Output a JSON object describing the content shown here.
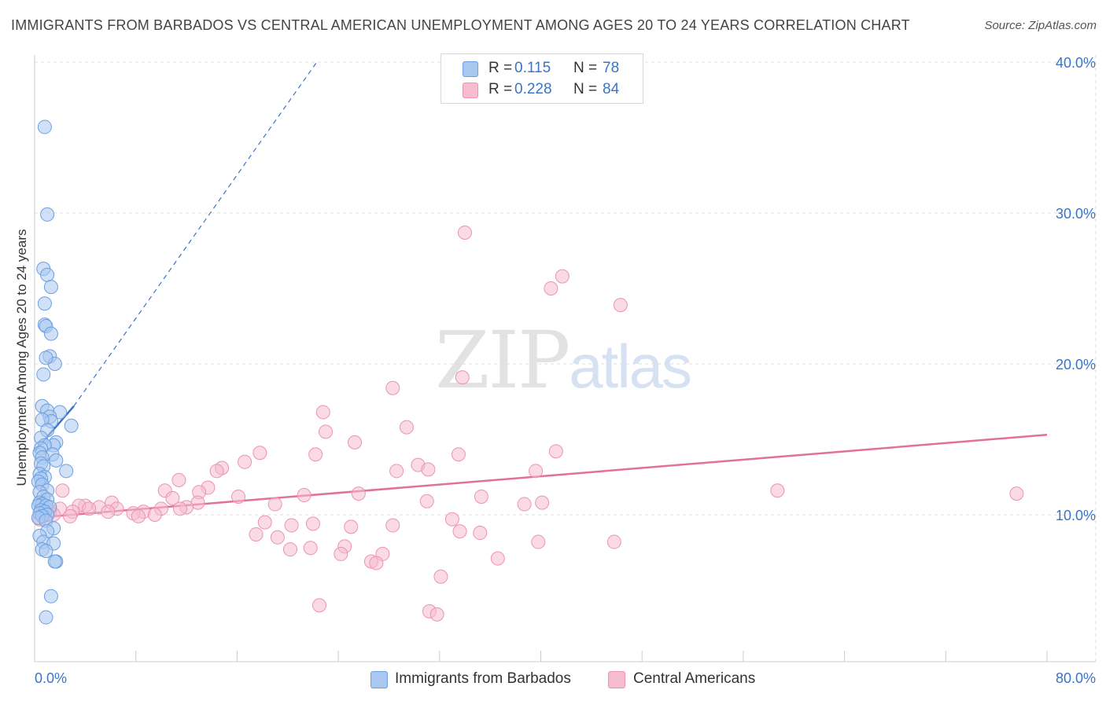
{
  "title": "IMMIGRANTS FROM BARBADOS VS CENTRAL AMERICAN UNEMPLOYMENT AMONG AGES 20 TO 24 YEARS CORRELATION CHART",
  "source": "Source: ZipAtlas.com",
  "watermark": {
    "zip": "ZIP",
    "atlas": "atlas"
  },
  "legend_top": [
    {
      "r_label": "R =",
      "r_value": "0.115",
      "n_label": "N =",
      "n_value": "78"
    },
    {
      "r_label": "R =",
      "r_value": "0.228",
      "n_label": "N =",
      "n_value": "84"
    }
  ],
  "legend_bottom": [
    "Immigrants from Barbados",
    "Central Americans"
  ],
  "colors": {
    "blue_fill": "#a9c8f0",
    "blue_stroke": "#6b9fe0",
    "blue_line": "#3a74c8",
    "pink_fill": "#f6bcd0",
    "pink_stroke": "#ec93b1",
    "pink_line": "#e3709a",
    "grid": "#dddddd",
    "tick_label": "#3a74c8"
  },
  "chart_data": {
    "type": "scatter",
    "title": "IMMIGRANTS FROM BARBADOS VS CENTRAL AMERICAN UNEMPLOYMENT AMONG AGES 20 TO 24 YEARS CORRELATION CHART",
    "xlabel": "",
    "ylabel": "Unemployment Among Ages 20 to 24 years",
    "xlim": [
      0,
      80
    ],
    "ylim": [
      0,
      42
    ],
    "x_tick_labels": [
      "0.0%",
      "80.0%"
    ],
    "y_ticks": [
      10,
      20,
      30,
      40
    ],
    "y_tick_labels": [
      "10.0%",
      "20.0%",
      "30.0%",
      "40.0%"
    ],
    "grid": true,
    "series": [
      {
        "name": "Immigrants from Barbados",
        "r": 0.115,
        "n": 78,
        "trend_solid": [
          [
            0.0,
            14.2
          ],
          [
            3.1,
            17.2
          ]
        ],
        "trend_dashed": [
          [
            3.1,
            17.2
          ],
          [
            22.3,
            40.0
          ]
        ],
        "points": [
          [
            0.8,
            35.7
          ],
          [
            1.0,
            29.9
          ],
          [
            0.7,
            26.3
          ],
          [
            1.0,
            25.9
          ],
          [
            1.3,
            25.1
          ],
          [
            0.8,
            24.0
          ],
          [
            0.8,
            22.6
          ],
          [
            0.9,
            22.5
          ],
          [
            1.3,
            22.0
          ],
          [
            1.2,
            20.5
          ],
          [
            1.6,
            20.0
          ],
          [
            0.9,
            20.4
          ],
          [
            0.7,
            19.3
          ],
          [
            0.6,
            17.2
          ],
          [
            1.0,
            16.9
          ],
          [
            2.0,
            16.8
          ],
          [
            1.2,
            16.5
          ],
          [
            1.3,
            16.2
          ],
          [
            0.6,
            16.3
          ],
          [
            2.9,
            15.9
          ],
          [
            1.0,
            15.6
          ],
          [
            0.5,
            15.1
          ],
          [
            1.7,
            14.8
          ],
          [
            1.5,
            14.6
          ],
          [
            0.8,
            14.6
          ],
          [
            0.5,
            14.4
          ],
          [
            0.4,
            14.1
          ],
          [
            1.4,
            14.0
          ],
          [
            0.6,
            13.8
          ],
          [
            1.7,
            13.6
          ],
          [
            0.5,
            13.4
          ],
          [
            0.7,
            13.2
          ],
          [
            2.5,
            12.9
          ],
          [
            0.4,
            12.7
          ],
          [
            0.8,
            12.5
          ],
          [
            0.5,
            12.4
          ],
          [
            0.3,
            12.2
          ],
          [
            0.6,
            12.0
          ],
          [
            1.0,
            11.6
          ],
          [
            0.4,
            11.5
          ],
          [
            0.7,
            11.2
          ],
          [
            1.0,
            11.0
          ],
          [
            0.4,
            10.8
          ],
          [
            0.6,
            10.7
          ],
          [
            0.3,
            10.6
          ],
          [
            0.9,
            10.6
          ],
          [
            1.2,
            10.5
          ],
          [
            0.5,
            10.3
          ],
          [
            0.8,
            10.2
          ],
          [
            0.4,
            10.1
          ],
          [
            1.0,
            10.0
          ],
          [
            0.6,
            9.9
          ],
          [
            0.3,
            9.8
          ],
          [
            0.9,
            9.6
          ],
          [
            1.5,
            9.1
          ],
          [
            1.0,
            8.9
          ],
          [
            0.4,
            8.6
          ],
          [
            0.7,
            8.2
          ],
          [
            1.5,
            8.1
          ],
          [
            0.6,
            7.7
          ],
          [
            0.9,
            7.6
          ],
          [
            1.7,
            6.9
          ],
          [
            1.6,
            6.9
          ],
          [
            1.3,
            4.6
          ],
          [
            0.9,
            3.2
          ]
        ]
      },
      {
        "name": "Central Americans",
        "r": 0.228,
        "n": 84,
        "trend_solid": [
          [
            0.0,
            9.8
          ],
          [
            80.0,
            15.3
          ]
        ],
        "points": [
          [
            34.0,
            28.7
          ],
          [
            41.7,
            25.8
          ],
          [
            40.8,
            25.0
          ],
          [
            46.3,
            23.9
          ],
          [
            33.8,
            19.1
          ],
          [
            28.3,
            18.4
          ],
          [
            22.8,
            16.8
          ],
          [
            29.4,
            15.8
          ],
          [
            23.0,
            15.5
          ],
          [
            25.3,
            14.8
          ],
          [
            33.5,
            14.0
          ],
          [
            22.2,
            14.0
          ],
          [
            17.8,
            14.1
          ],
          [
            41.2,
            14.2
          ],
          [
            16.6,
            13.5
          ],
          [
            30.3,
            13.3
          ],
          [
            31.1,
            13.0
          ],
          [
            14.8,
            13.1
          ],
          [
            14.4,
            12.9
          ],
          [
            28.6,
            12.9
          ],
          [
            39.6,
            12.9
          ],
          [
            11.4,
            12.3
          ],
          [
            13.7,
            11.8
          ],
          [
            10.3,
            11.6
          ],
          [
            13.0,
            11.5
          ],
          [
            2.2,
            11.6
          ],
          [
            58.7,
            11.6
          ],
          [
            77.6,
            11.4
          ],
          [
            25.6,
            11.4
          ],
          [
            21.3,
            11.3
          ],
          [
            35.3,
            11.2
          ],
          [
            16.1,
            11.2
          ],
          [
            10.9,
            11.1
          ],
          [
            31.0,
            10.9
          ],
          [
            12.9,
            10.8
          ],
          [
            6.1,
            10.8
          ],
          [
            40.1,
            10.8
          ],
          [
            38.7,
            10.7
          ],
          [
            19.0,
            10.7
          ],
          [
            4.0,
            10.6
          ],
          [
            3.5,
            10.6
          ],
          [
            5.1,
            10.5
          ],
          [
            12.0,
            10.5
          ],
          [
            6.5,
            10.4
          ],
          [
            2.0,
            10.4
          ],
          [
            11.5,
            10.4
          ],
          [
            4.3,
            10.4
          ],
          [
            10.0,
            10.4
          ],
          [
            1.2,
            10.3
          ],
          [
            3.0,
            10.2
          ],
          [
            8.6,
            10.2
          ],
          [
            5.8,
            10.2
          ],
          [
            7.8,
            10.1
          ],
          [
            1.5,
            10.0
          ],
          [
            9.5,
            10.0
          ],
          [
            2.8,
            9.9
          ],
          [
            8.2,
            9.9
          ],
          [
            0.9,
            9.8
          ],
          [
            0.4,
            9.7
          ],
          [
            33.0,
            9.7
          ],
          [
            18.2,
            9.5
          ],
          [
            22.0,
            9.4
          ],
          [
            20.3,
            9.3
          ],
          [
            28.3,
            9.3
          ],
          [
            25.0,
            9.2
          ],
          [
            33.6,
            8.9
          ],
          [
            17.5,
            8.7
          ],
          [
            35.2,
            8.8
          ],
          [
            19.2,
            8.5
          ],
          [
            45.8,
            8.2
          ],
          [
            39.8,
            8.2
          ],
          [
            24.5,
            7.9
          ],
          [
            21.8,
            7.8
          ],
          [
            20.2,
            7.7
          ],
          [
            24.2,
            7.4
          ],
          [
            27.5,
            7.4
          ],
          [
            36.6,
            7.1
          ],
          [
            26.6,
            6.9
          ],
          [
            27.0,
            6.8
          ],
          [
            32.1,
            5.9
          ],
          [
            22.5,
            4.0
          ],
          [
            31.2,
            3.6
          ],
          [
            31.8,
            3.4
          ]
        ]
      }
    ]
  }
}
